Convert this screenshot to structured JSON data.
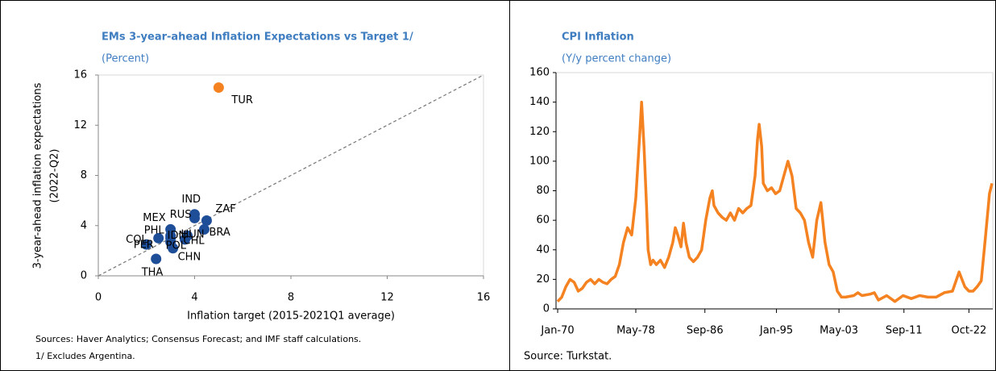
{
  "chart_data": [
    {
      "type": "scatter",
      "title": "EMs 3-year-ahead Inflation Expectations vs Target 1/",
      "subtitle": "(Percent)",
      "xlabel": "Inflation target (2015-2021Q1 average)",
      "ylabel": [
        "3-year-ahead inflation expectations",
        "(2022-Q2)"
      ],
      "point_labels": [
        "TUR",
        "IND",
        "ZAF",
        "RUS",
        "BRA",
        "MEX",
        "PHL",
        "IDN",
        "HUN",
        "POL",
        "CHL",
        "CHN",
        "PER",
        "COL",
        "THA"
      ],
      "x": [
        5.0,
        4.0,
        4.5,
        4.0,
        4.4,
        3.0,
        3.0,
        3.0,
        3.7,
        3.0,
        3.6,
        3.1,
        2.0,
        2.5,
        2.4
      ],
      "values": [
        15.0,
        4.9,
        4.4,
        4.6,
        3.7,
        3.7,
        3.2,
        3.0,
        3.2,
        2.7,
        2.9,
        2.2,
        2.5,
        3.0,
        1.35
      ],
      "point_colors": [
        "#f58220",
        "#1f4e99",
        "#1f4e99",
        "#1f4e99",
        "#1f4e99",
        "#1f4e99",
        "#1f4e99",
        "#1f4e99",
        "#1f4e99",
        "#1f4e99",
        "#1f4e99",
        "#1f4e99",
        "#1f4e99",
        "#1f4e99",
        "#1f4e99"
      ],
      "xlim": [
        0,
        16
      ],
      "xticks": [
        0,
        4,
        8,
        12,
        16
      ],
      "ylim": [
        0,
        16
      ],
      "yticks": [
        0,
        4,
        8,
        12,
        16
      ],
      "notes": [
        "Sources: Haver Analytics; Consensus Forecast; and IMF staff calculations.",
        "1/ Excludes Argentina."
      ]
    },
    {
      "type": "line",
      "title": "CPI Inflation",
      "subtitle": "(Y/y percent change)",
      "color": "#f58220",
      "x": [
        1970,
        1970.5,
        1971,
        1971.5,
        1972,
        1972.5,
        1973,
        1973.5,
        1974,
        1974.5,
        1975,
        1975.5,
        1976,
        1976.5,
        1977,
        1977.5,
        1978,
        1978.5,
        1979,
        1979.5,
        1980,
        1980.2,
        1980.5,
        1980.8,
        1981,
        1981.3,
        1981.6,
        1982,
        1982.5,
        1983,
        1983.5,
        1984,
        1984.3,
        1984.6,
        1985,
        1985.3,
        1985.6,
        1986,
        1986.5,
        1987,
        1987.5,
        1988,
        1988.5,
        1988.8,
        1989,
        1989.5,
        1990,
        1990.5,
        1991,
        1991.5,
        1992,
        1992.5,
        1993,
        1993.5,
        1994,
        1994.3,
        1994.5,
        1994.8,
        1995,
        1995.5,
        1996,
        1996.5,
        1997,
        1997.5,
        1998,
        1998.5,
        1999,
        1999.5,
        2000,
        2000.5,
        2001,
        2001.5,
        2002,
        2002.5,
        2003,
        2003.5,
        2004,
        2004.5,
        2005,
        2006,
        2006.5,
        2007,
        2008,
        2008.5,
        2009,
        2010,
        2011,
        2012,
        2013,
        2014,
        2015,
        2016,
        2017,
        2018,
        2018.8,
        2019.5,
        2020,
        2020.5,
        2021,
        2021.5,
        2022,
        2022.5,
        2022.8
      ],
      "values": [
        5,
        8,
        15,
        20,
        18,
        12,
        14,
        18,
        20,
        17,
        20,
        18,
        17,
        20,
        22,
        30,
        45,
        55,
        50,
        75,
        120,
        140,
        110,
        70,
        40,
        30,
        33,
        30,
        33,
        28,
        35,
        45,
        55,
        50,
        42,
        58,
        45,
        35,
        32,
        35,
        40,
        60,
        75,
        80,
        70,
        65,
        62,
        60,
        65,
        60,
        68,
        65,
        68,
        70,
        90,
        115,
        125,
        110,
        85,
        80,
        82,
        78,
        80,
        90,
        100,
        90,
        68,
        65,
        60,
        45,
        35,
        60,
        72,
        45,
        30,
        25,
        12,
        8,
        8,
        9,
        11,
        9,
        10,
        11,
        6,
        9,
        5,
        9,
        7,
        9,
        8,
        8,
        11,
        12,
        25,
        15,
        12,
        12,
        15,
        19,
        48,
        78,
        85
      ],
      "xlim": [
        1969.8,
        2022.9
      ],
      "xticks": [
        {
          "value": 1970,
          "label": "Jan-70"
        },
        {
          "value": 1979.5,
          "label": "May-78"
        },
        {
          "value": 1987.9,
          "label": "Sep-86"
        },
        {
          "value": 1996.6,
          "label": "Jan-95"
        },
        {
          "value": 2004.2,
          "label": "May-03"
        },
        {
          "value": 2012.1,
          "label": "Sep-11"
        },
        {
          "value": 2020,
          "label": "Oct-22"
        }
      ],
      "ylim": [
        0,
        160
      ],
      "yticks": [
        0,
        20,
        40,
        60,
        80,
        100,
        120,
        140,
        160
      ],
      "notes": [
        "Source: Turkstat."
      ]
    }
  ]
}
